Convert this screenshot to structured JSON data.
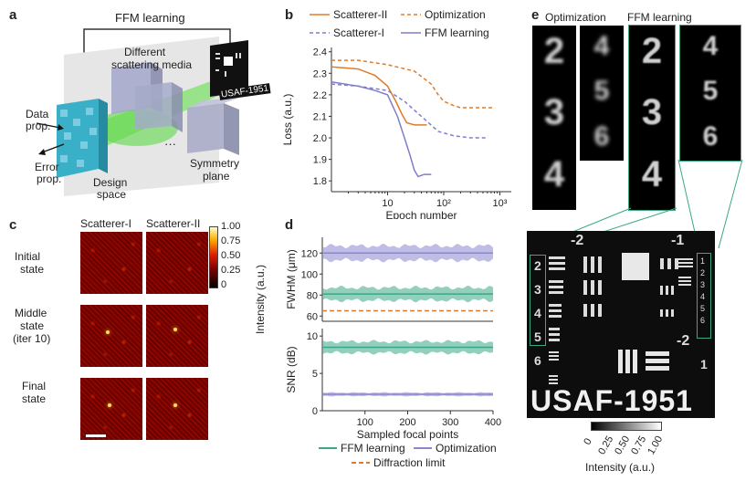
{
  "panels": {
    "a": "a",
    "b": "b",
    "c": "c",
    "d": "d",
    "e": "e"
  },
  "panel_a": {
    "title": "FFM learning",
    "media_label_1": "Different",
    "media_label_2": "scattering media",
    "target_label": "USAF-1951",
    "data_prop_1": "Data",
    "data_prop_2": "prop.",
    "error_prop_1": "Error",
    "error_prop_2": "prop.",
    "design_1": "Design",
    "design_2": "space",
    "symmetry_1": "Symmetry",
    "symmetry_2": "plane",
    "dots": "..."
  },
  "panel_c": {
    "col1": "Scatterer-I",
    "col2": "Scatterer-II",
    "rows": [
      {
        "line1": "Initial",
        "line2": "state"
      },
      {
        "line1": "Middle",
        "line2": "state",
        "line3": "(iter 10)"
      },
      {
        "line1": "Final",
        "line2": "state"
      }
    ],
    "colorbar_ticks": [
      "1.00",
      "0.75",
      "0.50",
      "0.25",
      "0"
    ],
    "colorbar_label": "Intensity (a.u.)"
  },
  "panel_e": {
    "col1": "Optimization",
    "col2": "FFM learning",
    "digits": [
      "2",
      "3",
      "4"
    ],
    "digits_right": [
      "4",
      "5",
      "6"
    ],
    "target_text": "USAF-1951",
    "group_labels": [
      "-2",
      "-1",
      "-2"
    ],
    "left_numbers": [
      "2",
      "3",
      "4",
      "5",
      "6"
    ],
    "right_numbers": [
      "1",
      "2",
      "3",
      "4",
      "5",
      "6"
    ],
    "lower_right": "1",
    "colorbar_ticks": [
      "0",
      "0.25",
      "0.50",
      "0.75",
      "1.00"
    ],
    "colorbar_label": "Intensity (a.u.)"
  },
  "chart_data": [
    {
      "type": "line",
      "panel": "b",
      "xlabel": "Epoch number",
      "ylabel": "Loss (a.u.)",
      "xscale": "log",
      "xlim": [
        1,
        1600
      ],
      "ylim": [
        1.75,
        2.42
      ],
      "yticks": [
        "2.4",
        "2.3",
        "2.2",
        "2.1",
        "2.0",
        "1.9",
        "1.8"
      ],
      "xticks": [
        "10",
        "10²",
        "10³"
      ],
      "legend": [
        "Scatterer-II",
        "Optimization",
        "Scatterer-I",
        "FFM learning"
      ],
      "colors": {
        "scatterer2": "#e07b2a",
        "scatterer1": "#7f7fc9"
      },
      "series": [
        {
          "name": "Scatterer-II",
          "style": "FFM learning",
          "x": [
            1,
            3,
            6,
            10,
            14,
            18,
            22,
            30,
            50
          ],
          "y": [
            2.33,
            2.32,
            2.29,
            2.24,
            2.17,
            2.11,
            2.07,
            2.06,
            2.06
          ]
        },
        {
          "name": "Scatterer-II",
          "style": "Optimization",
          "x": [
            1,
            3,
            10,
            30,
            60,
            80,
            100,
            150,
            200,
            400,
            800
          ],
          "y": [
            2.36,
            2.36,
            2.34,
            2.31,
            2.25,
            2.2,
            2.17,
            2.15,
            2.14,
            2.14,
            2.14
          ]
        },
        {
          "name": "Scatterer-I",
          "style": "FFM learning",
          "x": [
            1,
            3,
            6,
            10,
            15,
            20,
            25,
            30,
            35,
            45,
            60
          ],
          "y": [
            2.26,
            2.24,
            2.22,
            2.2,
            2.1,
            2.0,
            1.92,
            1.85,
            1.82,
            1.83,
            1.83
          ]
        },
        {
          "name": "Scatterer-I",
          "style": "Optimization",
          "x": [
            1,
            3,
            10,
            20,
            40,
            80,
            150,
            300,
            600
          ],
          "y": [
            2.25,
            2.24,
            2.22,
            2.17,
            2.1,
            2.03,
            2.01,
            2.0,
            2.0
          ]
        }
      ]
    },
    {
      "type": "area",
      "panel": "d-top",
      "ylabel": "FWHM (μm)",
      "ylim": [
        55,
        135
      ],
      "yticks": [
        "120",
        "100",
        "80",
        "60"
      ],
      "series": [
        {
          "name": "Optimization",
          "mean": 120,
          "band": [
            112,
            130
          ]
        },
        {
          "name": "FFM learning",
          "mean": 81,
          "band": [
            73,
            89
          ]
        },
        {
          "name": "Diffraction limit",
          "value": 65
        }
      ]
    },
    {
      "type": "area",
      "panel": "d-bottom",
      "xlabel": "Sampled focal points",
      "ylabel": "SNR (dB)",
      "xlim": [
        0,
        400
      ],
      "ylim": [
        0,
        11
      ],
      "yticks": [
        "10",
        "5",
        "0"
      ],
      "xticks": [
        "100",
        "200",
        "300",
        "400"
      ],
      "series": [
        {
          "name": "FFM learning",
          "mean": 8.5,
          "band": [
            7.5,
            9.5
          ]
        },
        {
          "name": "Optimization",
          "mean": 2.2,
          "band": [
            1.9,
            2.5
          ]
        }
      ],
      "legend": [
        "FFM learning",
        "Optimization",
        "Diffraction limit"
      ],
      "colors": {
        "ffm": "#3aa886",
        "opt": "#8a86cf",
        "diff": "#e07b2a"
      }
    }
  ]
}
